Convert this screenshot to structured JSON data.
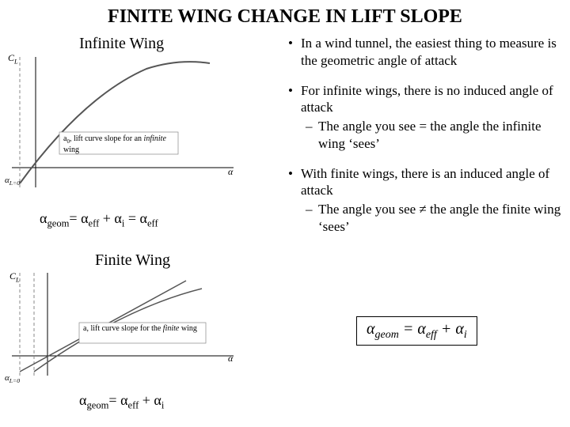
{
  "title": "FINITE WING CHANGE IN LIFT SLOPE",
  "subhead_infinite": "Infinite Wing",
  "subhead_finite": "Finite Wing",
  "eq1_html": "α<sub>geom</sub>= α<sub>eff</sub> + α<sub>i</sub> = α<sub>eff</sub>",
  "eq2_html": "α<sub>geom</sub>= α<sub>eff</sub> + α<sub>i</sub>",
  "formula_html": "α<sub>geom</sub> = α<sub>eff</sub> + α<sub>i</sub>",
  "bullets": {
    "b1": "In a wind tunnel, the easiest thing to measure is the geometric angle of attack",
    "b2": "For infinite wings, there is no induced angle of attack",
    "b2a": "The angle you see = the angle the infinite wing ‘sees’",
    "b3": "With finite wings, there is an induced angle of attack",
    "b3a": "The angle you see ≠ the angle the finite wing ‘sees’"
  },
  "diagram1": {
    "type": "line-plot-sketch",
    "y_label_html": "C<sub>L</sub>",
    "x_label_left_html": "α<sub>L=0</sub>",
    "x_label_right": "α",
    "annotation_html": "a<sub>0</sub>, lift curve slope for an <i>infinite</i> wing",
    "axis_color": "#000000",
    "curve_color": "#555555",
    "dashed_color": "#888888",
    "box_stroke": "#888888"
  },
  "diagram2": {
    "type": "line-plot-sketch",
    "y_label_html": "C<sub>L</sub>",
    "x_label_left_html": "α<sub>L=0</sub>",
    "x_label_right": "α",
    "annotation_html": "a, lift curve slope for the <i>finite</i> wing",
    "axis_color": "#000000",
    "curve_color": "#555555",
    "dashed_color": "#888888",
    "box_stroke": "#888888"
  },
  "colors": {
    "text": "#000000",
    "background": "#ffffff"
  }
}
